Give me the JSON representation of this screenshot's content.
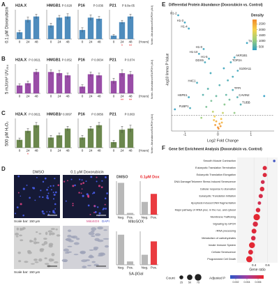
{
  "panel_labels": [
    "A",
    "B",
    "C",
    "D",
    "E",
    "F"
  ],
  "rows": [
    {
      "label": "0.1 μM Doxorubicin",
      "y_label": "Norm. Abundance/GAPDH (AU)",
      "x_unit": "(Hours)"
    },
    {
      "label": "5 mJ/cm² UV₂₅₄",
      "y_label": "Norm. Abundance/GAPDH (AU)",
      "x_unit": "(Hours)"
    },
    {
      "label": "500 μM H₂O₂",
      "y_label": "Norm. Abundance/GAPDH (AU)",
      "x_unit": "(Hours)"
    }
  ],
  "panel_d": {
    "image_titles": [
      "DMSO",
      "0.1 μM Doxorubicin"
    ],
    "scale_bars": [
      "Scale bar: 150 μm",
      "Scale bar: 150 μm"
    ],
    "stains": [
      "MitoSOX",
      "DAPI"
    ],
    "assay_labels": [
      "MitoSOX",
      "SA-βGal"
    ]
  },
  "chart_data": [
    {
      "type": "bar",
      "title": "H2A.X",
      "categories": [
        "0",
        "24",
        "48"
      ],
      "values": [
        0.3,
        0.85,
        1.0
      ],
      "errors": [
        0.08,
        0.12,
        0.1
      ],
      "color": "#3b7fb6",
      "ylim": [
        0,
        1.3
      ]
    },
    {
      "type": "bar",
      "title": "HMGB1",
      "annotation": "P 0.028",
      "categories": [
        "0",
        "24",
        "48"
      ],
      "values": [
        0.6,
        0.95,
        1.0
      ],
      "errors": [
        0.1,
        0.1,
        0.12
      ],
      "color": "#3b7fb6",
      "ylim": [
        0,
        1.3
      ]
    },
    {
      "type": "bar",
      "title": "P16",
      "annotation": "P 0.036",
      "categories": [
        "0",
        "24",
        "48"
      ],
      "values": [
        0.4,
        0.95,
        0.9
      ],
      "errors": [
        0.1,
        0.12,
        0.1
      ],
      "color": "#3b7fb6",
      "ylim": [
        0,
        1.3
      ]
    },
    {
      "type": "bar",
      "title": "P21",
      "annotation": "P 9.8e-05",
      "categories": [
        "0",
        "24",
        "48"
      ],
      "values": [
        0.15,
        0.75,
        1.0
      ],
      "errors": [
        0.05,
        0.08,
        0.1
      ],
      "color": "#3b7fb6",
      "ylim": [
        0,
        1.3
      ],
      "sig": [
        null,
        "*",
        "**"
      ]
    },
    {
      "type": "bar",
      "title": "H2A.X",
      "annotation": "P 0.0021",
      "categories": [
        "0",
        "24",
        "48"
      ],
      "values": [
        0.35,
        0.45,
        0.95
      ],
      "errors": [
        0.08,
        0.1,
        0.12
      ],
      "color": "#8e3a9d",
      "ylim": [
        0,
        1.3
      ]
    },
    {
      "type": "bar",
      "title": "HMGB1",
      "annotation": "P 0.052",
      "categories": [
        "0",
        "24",
        "48"
      ],
      "values": [
        0.95,
        0.9,
        0.8
      ],
      "errors": [
        0.1,
        0.12,
        0.1
      ],
      "color": "#8e3a9d",
      "ylim": [
        0,
        1.3
      ]
    },
    {
      "type": "bar",
      "title": "P16",
      "annotation": "P 0.0034",
      "categories": [
        "0",
        "24",
        "48"
      ],
      "values": [
        0.3,
        0.85,
        0.8
      ],
      "errors": [
        0.08,
        0.1,
        0.1
      ],
      "color": "#8e3a9d",
      "ylim": [
        0,
        1.3
      ]
    },
    {
      "type": "bar",
      "title": "P21",
      "annotation": "P 0.074",
      "categories": [
        "0",
        "24",
        "48"
      ],
      "values": [
        0.55,
        0.9,
        0.85
      ],
      "errors": [
        0.12,
        0.15,
        0.12
      ],
      "color": "#8e3a9d",
      "ylim": [
        0,
        1.3
      ],
      "sig": [
        null,
        "**",
        "**"
      ]
    },
    {
      "type": "bar",
      "title": "H2A.X",
      "annotation": "P 0.0021",
      "categories": [
        "0",
        "24",
        "48"
      ],
      "values": [
        0.35,
        0.75,
        1.0
      ],
      "errors": [
        0.08,
        0.1,
        0.12
      ],
      "color": "#5b7a3a",
      "ylim": [
        0,
        1.3
      ],
      "sig": [
        null,
        "*",
        null
      ]
    },
    {
      "type": "bar",
      "title": "HMGB1",
      "annotation": "P 0.0097",
      "categories": [
        "0",
        "24",
        "48"
      ],
      "values": [
        0.45,
        0.55,
        0.85
      ],
      "errors": [
        0.1,
        0.1,
        0.1
      ],
      "color": "#5b7a3a",
      "ylim": [
        0,
        1.3
      ]
    },
    {
      "type": "bar",
      "title": "P16",
      "annotation": "P 0.0056",
      "categories": [
        "0",
        "24",
        "48"
      ],
      "values": [
        0.45,
        0.85,
        1.0
      ],
      "errors": [
        0.1,
        0.1,
        0.12
      ],
      "color": "#5b7a3a",
      "ylim": [
        0,
        1.3
      ]
    },
    {
      "type": "bar",
      "title": "P21",
      "annotation": "P 0.063",
      "categories": [
        "0",
        "24",
        "48"
      ],
      "values": [
        0.25,
        0.8,
        0.85
      ],
      "errors": [
        0.08,
        0.15,
        0.15
      ],
      "color": "#5b7a3a",
      "ylim": [
        0,
        1.3
      ]
    },
    {
      "type": "bar",
      "title": "DMSO",
      "title_color": "#444444",
      "categories": [
        "Neg.",
        "Pos."
      ],
      "values": [
        95,
        5
      ],
      "colors": [
        "#b0b0b0",
        "#b0b0b0"
      ],
      "ylim": [
        0,
        100
      ]
    },
    {
      "type": "bar",
      "title": "0.1μM Dox",
      "title_color": "#e8262b",
      "categories": [
        "Neg.",
        "Pos."
      ],
      "values": [
        38,
        62
      ],
      "colors": [
        "#b0b0b0",
        "#e8262b"
      ],
      "ylim": [
        0,
        100
      ]
    },
    {
      "type": "bar",
      "categories": [
        "Neg.",
        "Pos."
      ],
      "values": [
        90,
        10
      ],
      "colors": [
        "#b0b0b0",
        "#b0b0b0"
      ],
      "ylim": [
        0,
        100
      ]
    },
    {
      "type": "bar",
      "categories": [
        "Neg.",
        "Pos."
      ],
      "values": [
        30,
        70
      ],
      "colors": [
        "#b0b0b0",
        "#e8262b"
      ],
      "ylim": [
        0,
        100
      ]
    },
    {
      "type": "scatter",
      "title": "Differential Protein Abundance (Doxorubicin vs. Control)",
      "x_label": "Log2 Fold Change",
      "y_label": "-log10 limma P Value",
      "x": [
        -1.2,
        -1.0,
        -0.88,
        0.88,
        -0.43,
        -0.57,
        0.5,
        -0.27,
        -0.39,
        0.39,
        0.6,
        -0.63,
        0.45,
        0.59,
        -0.88,
        -0.84,
        0.69,
        0,
        0.05,
        -0.05,
        0.1,
        -0.1,
        0.02,
        0.15,
        -0.15,
        0.2,
        -0.2,
        0.25,
        -0.3,
        0.3,
        -0.22,
        0.18,
        0.08,
        -0.08,
        0.12,
        -0.12,
        1.4,
        -1.3,
        0.35,
        -0.35,
        0.05,
        -0.05,
        0.45,
        -0.45,
        0.5,
        -0.5
      ],
      "y": [
        9.6,
        9.0,
        8.5,
        7.3,
        6.8,
        6.4,
        6.1,
        6.0,
        5.7,
        5.7,
        5.0,
        4.0,
        3.4,
        2.8,
        2.8,
        1.9,
        2.2,
        0.3,
        0.6,
        0.8,
        1.0,
        1.2,
        0.2,
        1.5,
        1.6,
        2.2,
        2.5,
        3.0,
        3.5,
        4.2,
        4.8,
        5.2,
        0.4,
        0.5,
        0.7,
        0.9,
        2.9,
        1.8,
        2.6,
        2.0,
        3.8,
        2.9,
        4.5,
        3.0,
        1.5,
        1.1
      ],
      "labels": [
        "H1-2",
        "H1-3",
        "H1-4",
        "TK1",
        "H1-0",
        "H1-10",
        "AKR1B1",
        "H1-5",
        "DDX5",
        "TOP2A",
        "S100A11",
        "H4C1",
        "TFPI",
        "CAVIN2",
        "HSPE1",
        "FUBP1",
        "TUBB",
        null,
        null,
        null,
        null,
        null,
        null,
        null,
        null,
        null,
        null,
        null,
        null,
        null,
        null,
        null,
        null,
        null,
        null,
        null,
        null,
        null,
        null,
        null,
        null,
        null,
        null,
        null,
        null,
        null
      ],
      "density": [
        250,
        250,
        250,
        250,
        300,
        300,
        300,
        320,
        320,
        320,
        300,
        350,
        400,
        450,
        300,
        350,
        450,
        2800,
        2600,
        2500,
        2200,
        2000,
        2900,
        1500,
        1400,
        900,
        800,
        600,
        500,
        400,
        350,
        300,
        2700,
        2700,
        2400,
        2300,
        200,
        200,
        700,
        800,
        450,
        650,
        350,
        500,
        1000,
        1100
      ],
      "xlim": [
        -1.4,
        1.7
      ],
      "xticks": [
        -1,
        0,
        1
      ],
      "ylim": [
        0,
        10
      ],
      "threshold": 1.3,
      "colorbar": {
        "title": "Density",
        "lim": [
          200,
          2900
        ],
        "ticks": [
          500,
          1000,
          1500,
          2000,
          2500
        ],
        "colors": [
          "#2f9fc4",
          "#9ccf7a",
          "#f6d24b",
          "#f08a2b"
        ]
      }
    },
    {
      "type": "dot",
      "title": "Gene Set Enrichment Analysis (Doxorubicin vs. Control)",
      "categories": [
        "Smooth Muscle Contraction",
        "Eukaryotic Translation Termination",
        "Eukaryotic Translation Elongation",
        "DNA Damage/Telomere Stress Induced Senescence",
        "Cellular response to starvation",
        "Eukaryotic Translation Initiation",
        "Apoptosis induced DNA fragmentation",
        "Major pathway of rRNA proc. in the nuc. and cytosol",
        "Membrane Trafficking",
        "Signaling by GPCR",
        "rRNA processing",
        "Metabolism of carbohydrates",
        "Innate Immune System",
        "Cellular Senescence",
        "Programmed Cell Death"
      ],
      "values": [
        0.7,
        0.56,
        0.56,
        0.53,
        0.52,
        0.5,
        0.48,
        0.46,
        0.44,
        0.42,
        0.4,
        0.39,
        0.37,
        0.35,
        0.33
      ],
      "sizes": [
        10,
        30,
        30,
        25,
        35,
        30,
        20,
        35,
        70,
        45,
        40,
        35,
        60,
        40,
        65
      ],
      "color_values": [
        0.0015,
        0.0065,
        0.0065,
        0.006,
        0.0065,
        0.0062,
        0.006,
        0.0065,
        0.0068,
        0.0064,
        0.0066,
        0.0063,
        0.0068,
        0.0066,
        0.0068
      ],
      "x_label": "Gene ratio",
      "xlim": [
        0.15,
        0.75
      ],
      "xticks": [
        0.4,
        0.6
      ],
      "size_legend": {
        "title": "Count",
        "values": [
          25,
          50,
          75
        ]
      },
      "color_legend": {
        "title": "Adjusted P",
        "lim": [
          0.001,
          0.007
        ],
        "ticks": [
          0.002,
          0.004,
          0.006
        ],
        "colors": [
          "#2b57c8",
          "#a23d9e",
          "#e8262b"
        ]
      }
    }
  ]
}
